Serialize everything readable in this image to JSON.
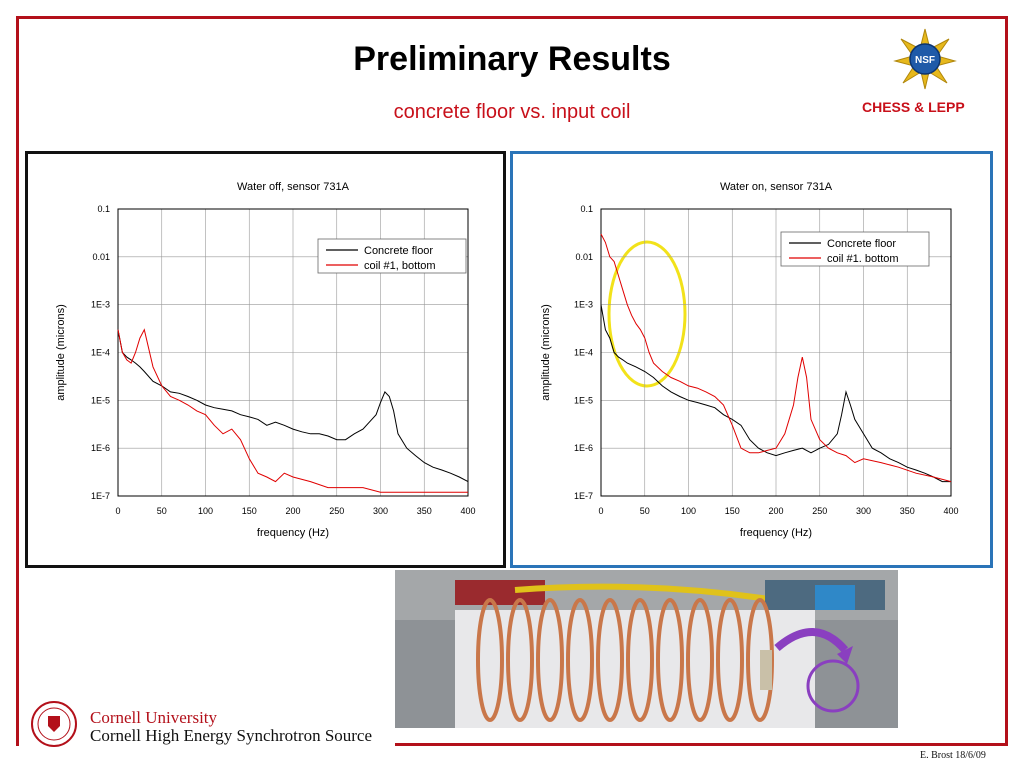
{
  "slide": {
    "title": "Preliminary Results",
    "subtitle": "concrete floor vs. input coil",
    "org": "CHESS & LEPP",
    "nsf_logo_text": "NSF",
    "university": "Cornell University",
    "source": "Cornell High Energy Synchrotron Source",
    "credit": "E. Brost 18/6/09"
  },
  "colors": {
    "frame": "#b3101a",
    "accent_red": "#c8101a",
    "series_concrete": "#000000",
    "series_coil": "#e00000",
    "panel_right_border": "#2a74b8",
    "highlight_circle": "#f2e21a",
    "arrow_purple": "#8a3fc0"
  },
  "chart_data": [
    {
      "type": "line",
      "title": "Water off, sensor 731A",
      "xlabel": "frequency (Hz)",
      "ylabel": "amplitude (microns)",
      "y_scale": "log",
      "xlim": [
        0,
        400
      ],
      "ylim": [
        1e-07,
        0.1
      ],
      "x_ticks": [
        "0",
        "50",
        "100",
        "150",
        "200",
        "250",
        "300",
        "350",
        "400"
      ],
      "y_ticks": [
        "1E-7",
        "1E-6",
        "1E-5",
        "1E-4",
        "1E-3",
        "0.01",
        "0.1"
      ],
      "grid": true,
      "legend_position": "top-right",
      "series": [
        {
          "name": "Concrete floor",
          "color": "#000000",
          "x": [
            0,
            5,
            10,
            15,
            20,
            25,
            30,
            40,
            50,
            60,
            70,
            80,
            90,
            100,
            110,
            120,
            130,
            140,
            150,
            160,
            170,
            180,
            190,
            200,
            210,
            220,
            230,
            240,
            250,
            260,
            270,
            280,
            290,
            295,
            300,
            305,
            310,
            315,
            320,
            330,
            340,
            350,
            360,
            370,
            380,
            390,
            400
          ],
          "y": [
            0.0003,
            0.0001,
            8e-05,
            7e-05,
            6e-05,
            5e-05,
            4e-05,
            2.5e-05,
            2e-05,
            1.5e-05,
            1.4e-05,
            1.2e-05,
            1e-05,
            8e-06,
            7e-06,
            6.5e-06,
            6e-06,
            5e-06,
            4.5e-06,
            4e-06,
            3e-06,
            3.5e-06,
            3e-06,
            2.5e-06,
            2.2e-06,
            2e-06,
            2e-06,
            1.8e-06,
            1.5e-06,
            1.5e-06,
            2e-06,
            2.5e-06,
            4e-06,
            5e-06,
            9e-06,
            1.5e-05,
            1.2e-05,
            6e-06,
            2e-06,
            1e-06,
            7e-07,
            5e-07,
            4e-07,
            3.5e-07,
            3e-07,
            2.5e-07,
            2e-07
          ]
        },
        {
          "name": "coil #1, bottom",
          "color": "#e00000",
          "x": [
            0,
            5,
            10,
            15,
            20,
            25,
            30,
            40,
            50,
            60,
            70,
            80,
            90,
            100,
            110,
            120,
            130,
            140,
            150,
            160,
            170,
            180,
            190,
            200,
            220,
            240,
            260,
            280,
            300,
            320,
            340,
            360,
            380,
            400
          ],
          "y": [
            0.0003,
            0.0001,
            7e-05,
            6e-05,
            0.0001,
            0.0002,
            0.0003,
            5e-05,
            2e-05,
            1.2e-05,
            1e-05,
            8e-06,
            6e-06,
            5e-06,
            3e-06,
            2e-06,
            2.5e-06,
            1.5e-06,
            6e-07,
            3e-07,
            2.5e-07,
            2e-07,
            3e-07,
            2.5e-07,
            2e-07,
            1.5e-07,
            1.5e-07,
            1.5e-07,
            1.2e-07,
            1.2e-07,
            1.2e-07,
            1.2e-07,
            1.2e-07,
            1.2e-07
          ]
        }
      ]
    },
    {
      "type": "line",
      "title": "Water on, sensor 731A",
      "xlabel": "frequency (Hz)",
      "ylabel": "amplitude (microns)",
      "y_scale": "log",
      "xlim": [
        0,
        400
      ],
      "ylim": [
        1e-07,
        0.1
      ],
      "x_ticks": [
        "0",
        "50",
        "100",
        "150",
        "200",
        "250",
        "300",
        "350",
        "400"
      ],
      "y_ticks": [
        "1E-7",
        "1E-6",
        "1E-5",
        "1E-4",
        "1E-3",
        "0.01",
        "0.1"
      ],
      "grid": true,
      "legend_position": "top-right",
      "series": [
        {
          "name": "Concrete floor",
          "color": "#000000",
          "x": [
            0,
            5,
            10,
            15,
            20,
            25,
            30,
            40,
            50,
            60,
            70,
            80,
            90,
            100,
            110,
            120,
            130,
            140,
            150,
            160,
            170,
            180,
            190,
            200,
            210,
            220,
            230,
            240,
            250,
            260,
            270,
            275,
            280,
            285,
            290,
            300,
            310,
            320,
            330,
            340,
            350,
            360,
            370,
            380,
            390,
            400
          ],
          "y": [
            0.001,
            0.0003,
            0.0002,
            0.0001,
            8e-05,
            7e-05,
            6e-05,
            5e-05,
            4e-05,
            3e-05,
            2e-05,
            1.5e-05,
            1.2e-05,
            1e-05,
            9e-06,
            8e-06,
            7e-06,
            5e-06,
            4e-06,
            3e-06,
            1.5e-06,
            1e-06,
            8e-07,
            7e-07,
            8e-07,
            9e-07,
            1e-06,
            8e-07,
            1e-06,
            1.2e-06,
            2e-06,
            5e-06,
            1.5e-05,
            8e-06,
            4e-06,
            2e-06,
            1e-06,
            8e-07,
            6e-07,
            5e-07,
            4e-07,
            3.5e-07,
            3e-07,
            2.5e-07,
            2e-07,
            2e-07
          ]
        },
        {
          "name": "coil #1. bottom",
          "color": "#e00000",
          "x": [
            0,
            5,
            10,
            15,
            20,
            25,
            30,
            35,
            40,
            45,
            50,
            55,
            60,
            70,
            80,
            90,
            100,
            110,
            120,
            130,
            140,
            150,
            160,
            170,
            180,
            190,
            200,
            210,
            220,
            225,
            230,
            235,
            240,
            250,
            260,
            270,
            280,
            290,
            300,
            320,
            340,
            360,
            380,
            400
          ],
          "y": [
            0.03,
            0.02,
            0.01,
            0.008,
            0.004,
            0.002,
            0.001,
            0.0006,
            0.0004,
            0.0003,
            0.0002,
            0.0001,
            6e-05,
            4e-05,
            3e-05,
            2.5e-05,
            2e-05,
            1.8e-05,
            1.5e-05,
            1.2e-05,
            8e-06,
            3e-06,
            1e-06,
            8e-07,
            8e-07,
            9e-07,
            1e-06,
            2e-06,
            8e-06,
            3e-05,
            8e-05,
            3e-05,
            4e-06,
            1.5e-06,
            1e-06,
            8e-07,
            7e-07,
            5e-07,
            6e-07,
            5e-07,
            4e-07,
            3e-07,
            2.5e-07,
            2e-07
          ]
        }
      ]
    }
  ]
}
